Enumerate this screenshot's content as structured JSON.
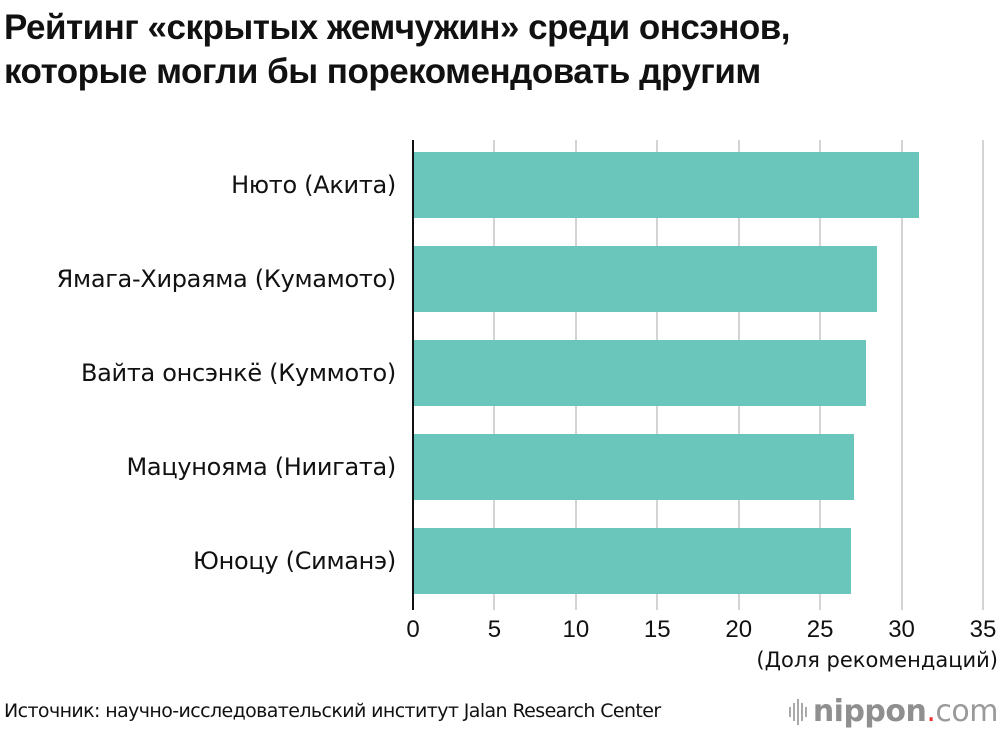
{
  "title_line1": "Рейтинг «скрытых жемчужин» среди онсэнов,",
  "title_line2": "которые могли бы порекомендовать другим",
  "source": "Источник: научно-исследовательский институт Jalan Research Center",
  "logo": {
    "name": "nippon",
    "dot": ".",
    "tld": "com",
    "icon": "sound-bars-icon"
  },
  "colors": {
    "bar": "#6ac6ba",
    "grid": "#d4d4d4",
    "axis": "#111111",
    "logo_dot": "#e8312f"
  },
  "chart_data": {
    "type": "bar",
    "orientation": "horizontal",
    "title": "Рейтинг «скрытых жемчужин» среди онсэнов, которые могли бы порекомендовать другим",
    "categories": [
      "Нюто (Акита)",
      "Ямага-Хираяма (Кумамото)",
      "Вайта онсэнкё (Куммото)",
      "Мацунояма (Ниигата)",
      "Юноцу (Симанэ)"
    ],
    "values": [
      31.1,
      28.5,
      27.8,
      27.1,
      26.9
    ],
    "xlabel": "(Доля рекомендаций)",
    "ylabel": "",
    "xlim": [
      0,
      35
    ],
    "xticks": [
      "0",
      "5",
      "10",
      "15",
      "20",
      "25",
      "30",
      "35"
    ],
    "grid": "vertical",
    "legend": "none"
  }
}
